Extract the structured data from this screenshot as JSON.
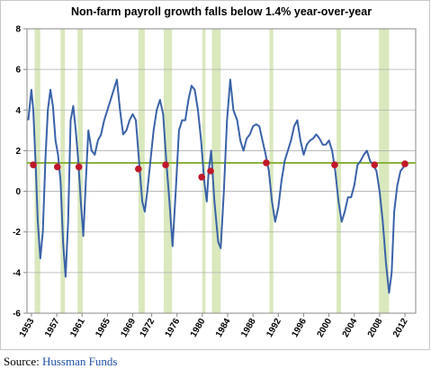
{
  "chart_data": {
    "type": "line",
    "title": "Non-farm payroll growth falls below 1.4% year-over-year",
    "xlim": [
      1952.3,
      2013.7
    ],
    "xticks": [
      1953,
      1957,
      1961,
      1965,
      1969,
      1972,
      1976,
      1980,
      1984,
      1988,
      1992,
      1996,
      2000,
      2004,
      2008,
      2012
    ],
    "ylim": [
      -6,
      8
    ],
    "yticks": [
      -6,
      -4,
      -2,
      0,
      2,
      4,
      6,
      8
    ],
    "grid": true,
    "series": [
      {
        "color": "#3a62a8",
        "x": [
          1952.5,
          1953.0,
          1953.3,
          1953.7,
          1954.0,
          1954.4,
          1954.8,
          1955.2,
          1955.6,
          1956.0,
          1956.4,
          1956.8,
          1957.2,
          1957.6,
          1958.0,
          1958.4,
          1958.8,
          1959.2,
          1959.6,
          1960.0,
          1960.4,
          1960.8,
          1961.2,
          1961.6,
          1962.0,
          1962.5,
          1963.0,
          1963.5,
          1964.0,
          1964.5,
          1965.0,
          1965.5,
          1966.0,
          1966.5,
          1967.0,
          1967.5,
          1968.0,
          1968.5,
          1969.0,
          1969.5,
          1970.0,
          1970.5,
          1970.9,
          1971.3,
          1971.8,
          1972.3,
          1972.8,
          1973.3,
          1973.8,
          1974.3,
          1974.8,
          1975.3,
          1975.8,
          1976.3,
          1976.8,
          1977.3,
          1977.8,
          1978.3,
          1978.8,
          1979.3,
          1979.8,
          1980.3,
          1980.7,
          1981.0,
          1981.4,
          1981.9,
          1982.5,
          1982.9,
          1983.4,
          1983.9,
          1984.4,
          1984.9,
          1985.5,
          1986.0,
          1986.5,
          1987.0,
          1987.5,
          1988.0,
          1988.5,
          1989.0,
          1989.5,
          1990.0,
          1990.5,
          1991.0,
          1991.5,
          1992.0,
          1992.5,
          1993.0,
          1993.5,
          1994.0,
          1994.5,
          1995.0,
          1995.5,
          1996.0,
          1996.5,
          1997.0,
          1997.5,
          1998.0,
          1998.5,
          1999.0,
          1999.5,
          2000.0,
          2000.5,
          2001.0,
          2001.5,
          2002.0,
          2002.5,
          2003.0,
          2003.5,
          2004.0,
          2004.5,
          2005.0,
          2005.5,
          2006.0,
          2006.5,
          2007.0,
          2007.5,
          2008.0,
          2008.5,
          2009.0,
          2009.5,
          2009.9,
          2010.3,
          2010.8,
          2011.3,
          2011.8,
          2012.2
        ],
        "values": [
          3.5,
          5.0,
          4.0,
          1.0,
          -1.5,
          -3.3,
          -2.0,
          1.5,
          4.0,
          5.0,
          4.2,
          2.5,
          1.8,
          0.5,
          -2.5,
          -4.2,
          -1.5,
          3.5,
          4.2,
          3.0,
          1.5,
          -0.5,
          -2.2,
          0.5,
          3.0,
          2.0,
          1.8,
          2.5,
          2.8,
          3.5,
          4.0,
          4.5,
          5.0,
          5.5,
          4.0,
          2.8,
          3.0,
          3.5,
          3.8,
          3.5,
          1.5,
          -0.5,
          -1.0,
          0.0,
          1.5,
          3.0,
          4.0,
          4.5,
          3.8,
          1.5,
          -0.5,
          -2.7,
          0.0,
          3.0,
          3.5,
          3.5,
          4.5,
          5.2,
          5.0,
          4.0,
          2.5,
          0.5,
          -0.5,
          1.0,
          2.0,
          -0.5,
          -2.5,
          -2.8,
          0.0,
          3.5,
          5.5,
          4.0,
          3.5,
          2.5,
          2.0,
          2.6,
          2.8,
          3.2,
          3.3,
          3.2,
          2.5,
          1.8,
          1.0,
          -0.5,
          -1.5,
          -0.8,
          0.5,
          1.5,
          2.0,
          2.5,
          3.2,
          3.5,
          2.5,
          1.8,
          2.3,
          2.5,
          2.6,
          2.8,
          2.6,
          2.3,
          2.3,
          2.5,
          2.0,
          1.0,
          -0.5,
          -1.5,
          -1.0,
          -0.3,
          -0.3,
          0.3,
          1.3,
          1.5,
          1.8,
          2.0,
          1.5,
          1.3,
          1.0,
          0.0,
          -1.5,
          -3.5,
          -5.0,
          -4.0,
          -1.0,
          0.3,
          1.0,
          1.2,
          1.4
        ]
      }
    ],
    "markers": {
      "color": "#c0182a",
      "x": [
        1953.3,
        1957.1,
        1960.5,
        1969.9,
        1974.2,
        1979.9,
        1981.3,
        1990.1,
        2000.9,
        2007.2,
        2012.0
      ],
      "values": [
        1.3,
        1.2,
        1.2,
        1.1,
        1.3,
        0.7,
        1.0,
        1.4,
        1.3,
        1.3,
        1.35
      ]
    },
    "threshold": {
      "value": 1.4,
      "color": "#8db33a"
    },
    "recessions": {
      "color": "#d9e8bd",
      "starts": [
        1953.5,
        1957.6,
        1960.3,
        1969.9,
        1973.9,
        1980.0,
        1981.5,
        1990.6,
        2001.2,
        2007.9
      ],
      "ends": [
        1954.4,
        1958.3,
        1961.1,
        1970.9,
        1975.2,
        1980.5,
        1982.9,
        1991.2,
        2001.9,
        2009.5
      ]
    },
    "source": {
      "label": "Source:",
      "name": "Hussman Funds"
    }
  }
}
